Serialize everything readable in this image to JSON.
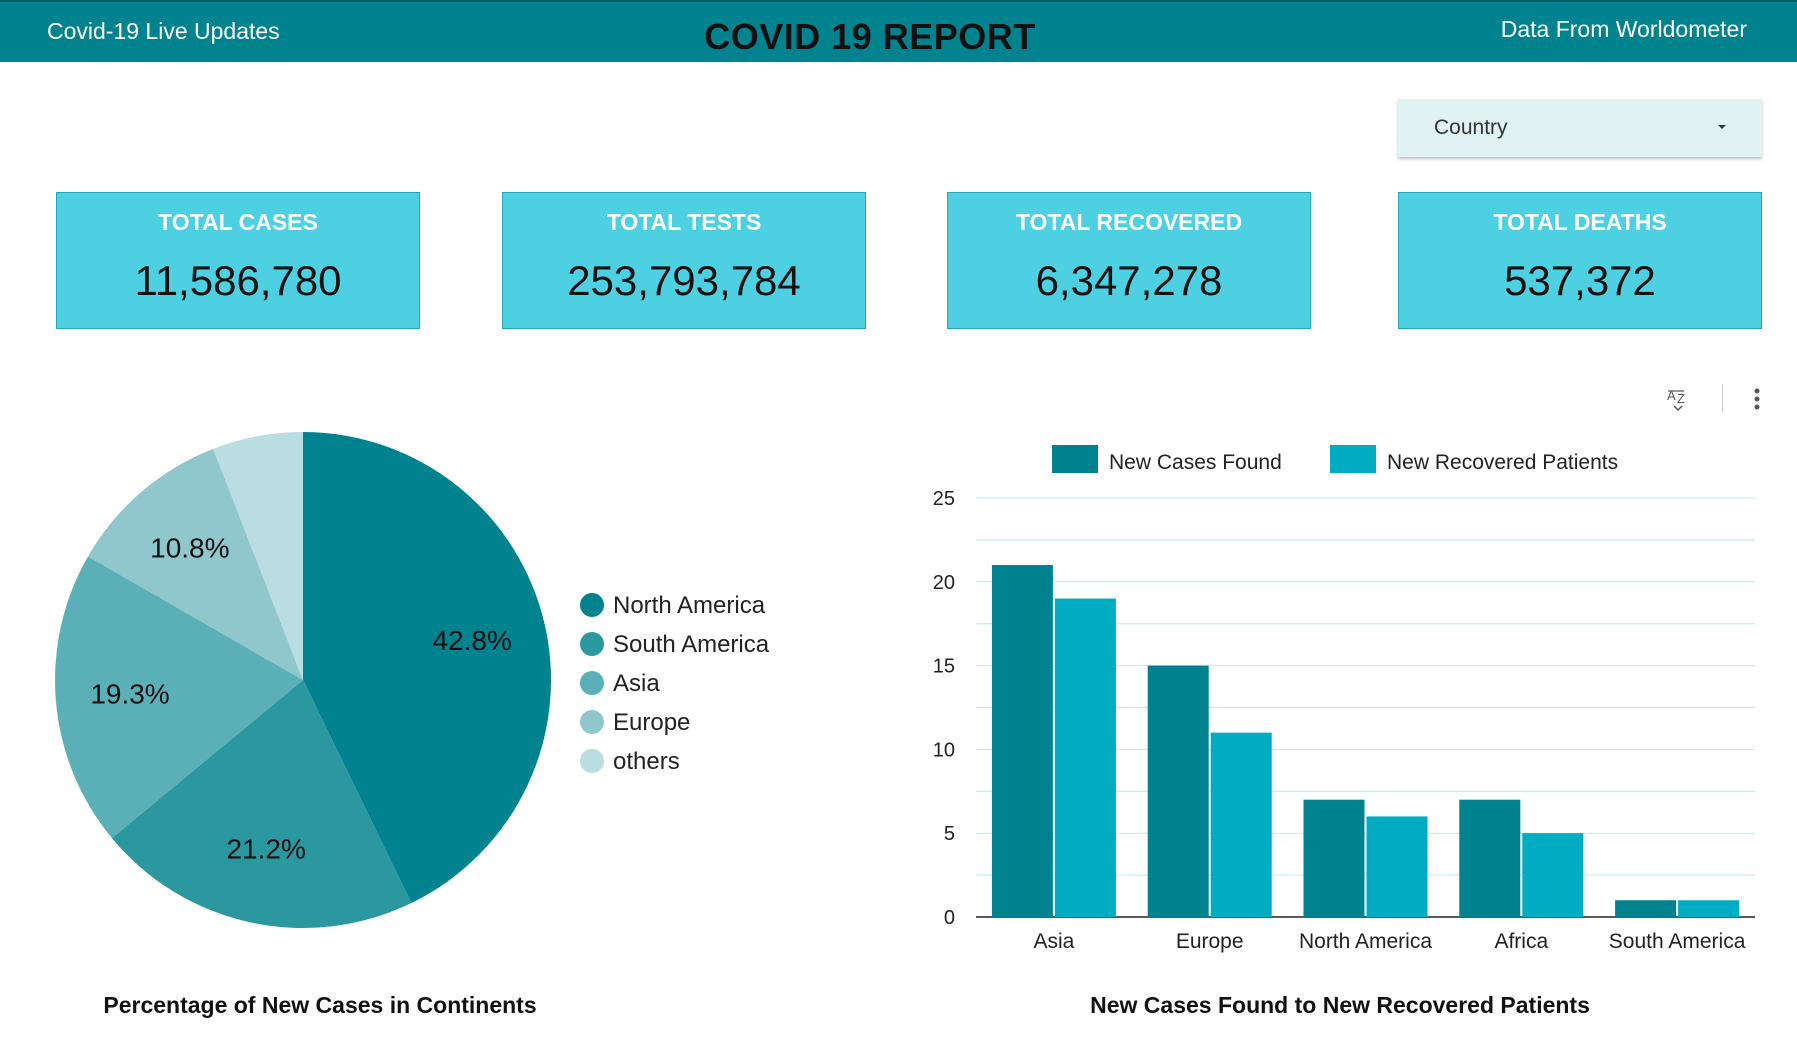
{
  "header": {
    "left_title": "Covid-19 Live Updates",
    "center_title": "COVID 19 REPORT",
    "right_title": "Data From Worldometer"
  },
  "filter": {
    "label": "Country"
  },
  "kpis": [
    {
      "title": "TOTAL CASES",
      "value": "11,586,780"
    },
    {
      "title": "TOTAL TESTS",
      "value": "253,793,784"
    },
    {
      "title": "TOTAL RECOVERED",
      "value": "6,347,278"
    },
    {
      "title": "TOTAL DEATHS",
      "value": "537,372"
    }
  ],
  "colors": {
    "header": "#00838f",
    "kpi_fill": "#4dd0e1",
    "series_dark": "#00838f",
    "series_light": "#00acc1",
    "pie": [
      "#00838f",
      "#2b979f",
      "#5bb0b7",
      "#8fc7cc",
      "#b9dde1"
    ]
  },
  "chart_data": [
    {
      "type": "pie",
      "caption": "Percentage of New Cases in Continents",
      "slices": [
        {
          "label": "North America",
          "value": 42.8,
          "display": "42.8%"
        },
        {
          "label": "South America",
          "value": 21.2,
          "display": "21.2%"
        },
        {
          "label": "Asia",
          "value": 19.3,
          "display": "19.3%"
        },
        {
          "label": "Europe",
          "value": 10.8,
          "display": "10.8%"
        },
        {
          "label": "others",
          "value": 5.9,
          "display": ""
        }
      ],
      "legend_position": "right"
    },
    {
      "type": "bar",
      "caption": "New Cases Found to New Recovered Patients",
      "categories": [
        "Asia",
        "Europe",
        "North America",
        "Africa",
        "South America"
      ],
      "series": [
        {
          "name": "New Cases Found",
          "values": [
            21,
            15,
            7,
            7,
            1
          ]
        },
        {
          "name": "New Recovered Patients",
          "values": [
            19,
            11,
            6,
            5,
            1
          ]
        }
      ],
      "ylim": [
        0,
        25
      ],
      "yticks": [
        0,
        5,
        10,
        15,
        20,
        25
      ],
      "grid": true,
      "legend_position": "top"
    }
  ]
}
